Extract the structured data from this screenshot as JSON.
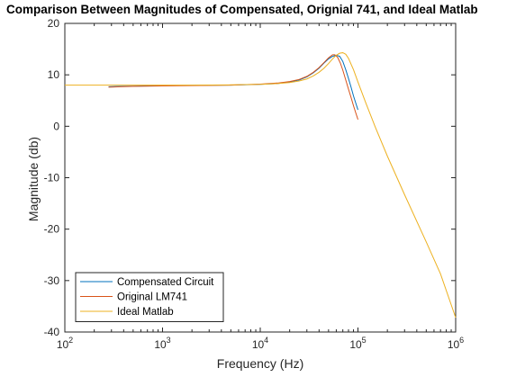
{
  "chart_data": {
    "type": "line",
    "title": "Comparison Between Magnitudes of Compensated, Orignial 741, and Ideal Matlab",
    "xlabel": "Frequency (Hz)",
    "ylabel": "Magnitude (db)",
    "xscale": "log",
    "xlim": [
      100,
      1000000
    ],
    "ylim": [
      -40,
      20
    ],
    "x_ticks": [
      {
        "value": 100,
        "base": "10",
        "exp": "2"
      },
      {
        "value": 1000,
        "base": "10",
        "exp": "3"
      },
      {
        "value": 10000,
        "base": "10",
        "exp": "4"
      },
      {
        "value": 100000,
        "base": "10",
        "exp": "5"
      },
      {
        "value": 1000000,
        "base": "10",
        "exp": "6"
      }
    ],
    "y_ticks": [
      20,
      10,
      0,
      -10,
      -20,
      -30,
      -40
    ],
    "grid": false,
    "legend": "bottom-left",
    "series": [
      {
        "name": "Compensated Circuit",
        "color": "#0072BD",
        "x": [
          280,
          500,
          1000,
          2000,
          5000,
          10000,
          15000,
          20000,
          25000,
          30000,
          35000,
          40000,
          45000,
          50000,
          55000,
          60000,
          65000,
          70000,
          75000,
          80000,
          85000,
          90000,
          95000,
          100000
        ],
        "y": [
          7.7,
          7.8,
          7.9,
          7.95,
          8.0,
          8.15,
          8.3,
          8.6,
          9.0,
          9.6,
          10.4,
          11.3,
          12.3,
          13.1,
          13.6,
          13.8,
          13.6,
          12.6,
          11.0,
          9.3,
          7.6,
          5.9,
          4.5,
          3.2
        ]
      },
      {
        "name": "Original LM741",
        "color": "#D95319",
        "x": [
          280,
          500,
          1000,
          2000,
          5000,
          10000,
          15000,
          20000,
          25000,
          30000,
          35000,
          40000,
          45000,
          50000,
          55000,
          58000,
          62000,
          66000,
          70000,
          75000,
          80000,
          85000,
          90000,
          95000,
          100000
        ],
        "y": [
          7.6,
          7.75,
          7.85,
          7.9,
          8.0,
          8.2,
          8.4,
          8.7,
          9.1,
          9.7,
          10.5,
          11.4,
          12.4,
          13.3,
          13.9,
          13.9,
          13.4,
          12.3,
          10.9,
          9.0,
          7.2,
          5.6,
          4.0,
          2.6,
          1.3
        ]
      },
      {
        "name": "Ideal Matlab",
        "color": "#EDB120",
        "x": [
          100,
          200,
          500,
          1000,
          2000,
          5000,
          10000,
          15000,
          20000,
          25000,
          30000,
          35000,
          40000,
          45000,
          50000,
          55000,
          60000,
          65000,
          70000,
          75000,
          80000,
          90000,
          100000,
          120000,
          150000,
          200000,
          300000,
          500000,
          700000,
          1000000
        ],
        "y": [
          8.0,
          8.0,
          8.0,
          8.0,
          8.0,
          8.05,
          8.15,
          8.3,
          8.5,
          8.8,
          9.2,
          9.8,
          10.5,
          11.3,
          12.2,
          13.1,
          13.8,
          14.2,
          14.3,
          14.0,
          13.2,
          11.0,
          8.6,
          4.6,
          -0.1,
          -5.8,
          -13.3,
          -22.5,
          -28.7,
          -37.2
        ]
      }
    ]
  }
}
